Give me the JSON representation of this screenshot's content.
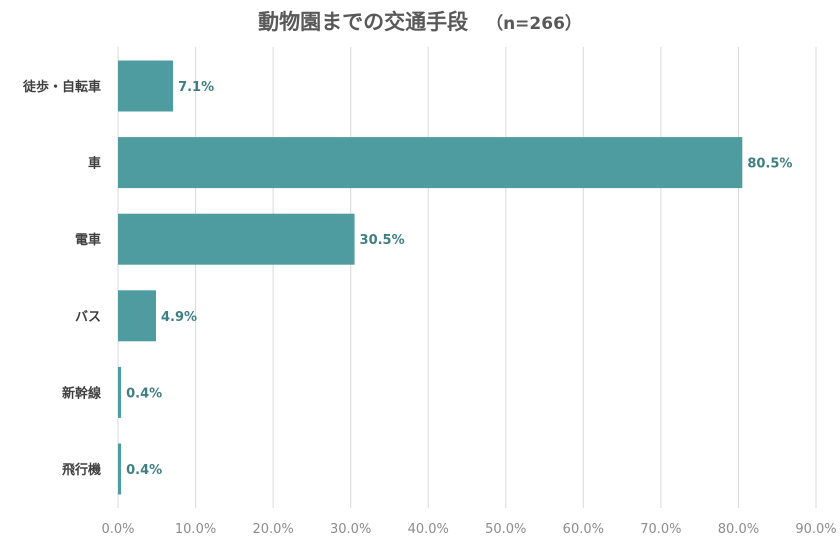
{
  "chart_data": {
    "type": "bar",
    "orientation": "horizontal",
    "title": "動物園までの交通手段",
    "subtitle": "（n=266）",
    "categories": [
      "徒歩・自転車",
      "車",
      "電車",
      "バス",
      "新幹線",
      "飛行機"
    ],
    "values": [
      7.1,
      80.5,
      30.5,
      4.9,
      0.4,
      0.4
    ],
    "value_labels": [
      "7.1%",
      "80.5%",
      "30.5%",
      "4.9%",
      "0.4%",
      "0.4%"
    ],
    "xlim": [
      0,
      90
    ],
    "xticks": [
      0,
      10,
      20,
      30,
      40,
      50,
      60,
      70,
      80,
      90
    ],
    "xtick_labels": [
      "0.0%",
      "10.0%",
      "20.0%",
      "30.0%",
      "40.0%",
      "50.0%",
      "60.0%",
      "70.0%",
      "80.0%",
      "90.0%"
    ],
    "xlabel": "",
    "ylabel": "",
    "grid": "vertical",
    "legend": "none"
  },
  "colors": {
    "bar": "#4e9c9f",
    "value_label": "#3f7f83",
    "grid": "#d9d9d9",
    "title": "#595959"
  }
}
